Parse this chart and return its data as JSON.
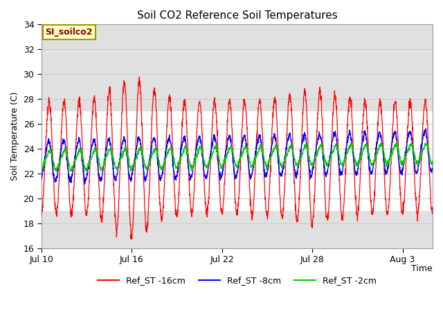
{
  "title": "Soil CO2 Reference Soil Temperatures",
  "ylabel": "Soil Temperature (C)",
  "xlabel_right": "Time",
  "ylim": [
    16,
    34
  ],
  "yticks": [
    16,
    18,
    20,
    22,
    24,
    26,
    28,
    30,
    32,
    34
  ],
  "xtick_positions": [
    0,
    6,
    12,
    18,
    24
  ],
  "xtick_labels": [
    "Jul 10",
    "Jul 16",
    "Jul 22",
    "Jul 28",
    "Aug 3"
  ],
  "xlim": [
    0,
    26
  ],
  "color_16cm": "#ff0000",
  "color_8cm": "#0000ff",
  "color_2cm": "#00cc00",
  "legend_labels": [
    "Ref_ST -16cm",
    "Ref_ST -8cm",
    "Ref_ST -2cm"
  ],
  "annotation_text": "SI_soilco2",
  "annotation_bg": "#ffffcc",
  "annotation_border": "#999900",
  "shaded_top_ymin": 27,
  "shaded_top_ymax": 34,
  "shaded_bot_ymin": 16,
  "shaded_bot_ymax": 19,
  "shade_color": "#e0e0e0",
  "plot_bg": "#ffffff",
  "grid_color": "#cccccc",
  "num_points": 2000,
  "lw_16": 0.9,
  "lw_8": 1.0,
  "lw_2": 1.0
}
